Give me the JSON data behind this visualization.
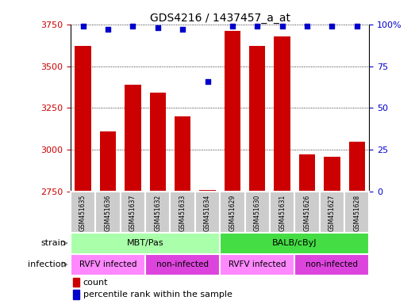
{
  "title": "GDS4216 / 1437457_a_at",
  "samples": [
    "GSM451635",
    "GSM451636",
    "GSM451637",
    "GSM451632",
    "GSM451633",
    "GSM451634",
    "GSM451629",
    "GSM451630",
    "GSM451631",
    "GSM451626",
    "GSM451627",
    "GSM451628"
  ],
  "counts": [
    3620,
    3110,
    3390,
    3340,
    3200,
    2760,
    3710,
    3620,
    3680,
    2970,
    2960,
    3050
  ],
  "percentile_ranks": [
    99,
    97,
    99,
    98,
    97,
    66,
    99,
    99,
    99,
    99,
    99,
    99
  ],
  "bar_color": "#cc0000",
  "dot_color": "#0000cc",
  "ylim_left": [
    2750,
    3750
  ],
  "ylim_right": [
    0,
    100
  ],
  "yticks_left": [
    2750,
    3000,
    3250,
    3500,
    3750
  ],
  "yticks_right": [
    0,
    25,
    50,
    75,
    100
  ],
  "ytick_labels_right": [
    "0",
    "25",
    "50",
    "75",
    "100%"
  ],
  "strain_labels": [
    {
      "label": "MBT/Pas",
      "start": 0,
      "end": 6,
      "color": "#aaffaa"
    },
    {
      "label": "BALB/cByJ",
      "start": 6,
      "end": 12,
      "color": "#44dd44"
    }
  ],
  "infection_labels": [
    {
      "label": "RVFV infected",
      "start": 0,
      "end": 3,
      "color": "#ff88ff"
    },
    {
      "label": "non-infected",
      "start": 3,
      "end": 6,
      "color": "#dd44dd"
    },
    {
      "label": "RVFV infected",
      "start": 6,
      "end": 9,
      "color": "#ff88ff"
    },
    {
      "label": "non-infected",
      "start": 9,
      "end": 12,
      "color": "#dd44dd"
    }
  ],
  "legend_count_color": "#cc0000",
  "legend_pct_color": "#0000cc",
  "sample_box_color": "#cccccc",
  "background_color": "#ffffff"
}
